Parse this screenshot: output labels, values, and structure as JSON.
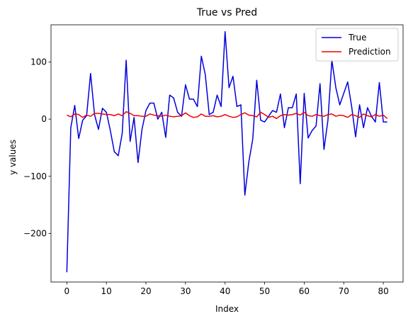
{
  "chart_data": {
    "type": "line",
    "title": "True vs Pred",
    "xlabel": "Index",
    "ylabel": "y values",
    "xlim": [
      -4,
      85
    ],
    "ylim": [
      -285,
      165
    ],
    "xticks": [
      0,
      10,
      20,
      30,
      40,
      50,
      60,
      70,
      80
    ],
    "yticks": [
      -200,
      -100,
      0,
      100
    ],
    "ytick_labels": [
      "−200",
      "−100",
      "0",
      "100"
    ],
    "grid": false,
    "legend_position": "top-right",
    "x": [
      0,
      1,
      2,
      3,
      4,
      5,
      6,
      7,
      8,
      9,
      10,
      11,
      12,
      13,
      14,
      15,
      16,
      17,
      18,
      19,
      20,
      21,
      22,
      23,
      24,
      25,
      26,
      27,
      28,
      29,
      30,
      31,
      32,
      33,
      34,
      35,
      36,
      37,
      38,
      39,
      40,
      41,
      42,
      43,
      44,
      45,
      46,
      47,
      48,
      49,
      50,
      51,
      52,
      53,
      54,
      55,
      56,
      57,
      58,
      59,
      60,
      61,
      62,
      63,
      64,
      65,
      66,
      67,
      68,
      69,
      70,
      71,
      72,
      73,
      74,
      75,
      76,
      77,
      78,
      79,
      80,
      81
    ],
    "series": [
      {
        "name": "True",
        "color": "#0000dd",
        "values": [
          -268,
          -15,
          24,
          -34,
          -2,
          6,
          80,
          8,
          -18,
          19,
          12,
          -20,
          -57,
          -64,
          -25,
          103,
          -39,
          3,
          -76,
          -18,
          15,
          28,
          28,
          0,
          12,
          -32,
          42,
          37,
          12,
          5,
          60,
          35,
          35,
          22,
          110,
          78,
          8,
          12,
          42,
          22,
          153,
          55,
          75,
          22,
          25,
          -133,
          -75,
          -35,
          68,
          -2,
          -5,
          5,
          15,
          12,
          44,
          -15,
          20,
          20,
          44,
          -113,
          45,
          -33,
          -20,
          -12,
          62,
          -53,
          -2,
          103,
          55,
          25,
          45,
          65,
          22,
          -31,
          25,
          -15,
          20,
          5,
          -5,
          64,
          -5,
          -5
        ]
      },
      {
        "name": "Prediction",
        "color": "#ee0000",
        "values": [
          7,
          4,
          9,
          8,
          3,
          7,
          5,
          10,
          10,
          9,
          8,
          8,
          6,
          9,
          6,
          13,
          10,
          6,
          6,
          5,
          5,
          9,
          7,
          6,
          5,
          7,
          5,
          4,
          5,
          6,
          11,
          6,
          3,
          4,
          9,
          5,
          5,
          6,
          4,
          5,
          8,
          5,
          3,
          4,
          8,
          11,
          7,
          6,
          4,
          12,
          8,
          3,
          5,
          1,
          6,
          8,
          7,
          8,
          10,
          7,
          12,
          6,
          5,
          8,
          6,
          5,
          8,
          9,
          5,
          7,
          6,
          3,
          8,
          6,
          3,
          9,
          6,
          4,
          8,
          5,
          7,
          1
        ]
      }
    ]
  }
}
